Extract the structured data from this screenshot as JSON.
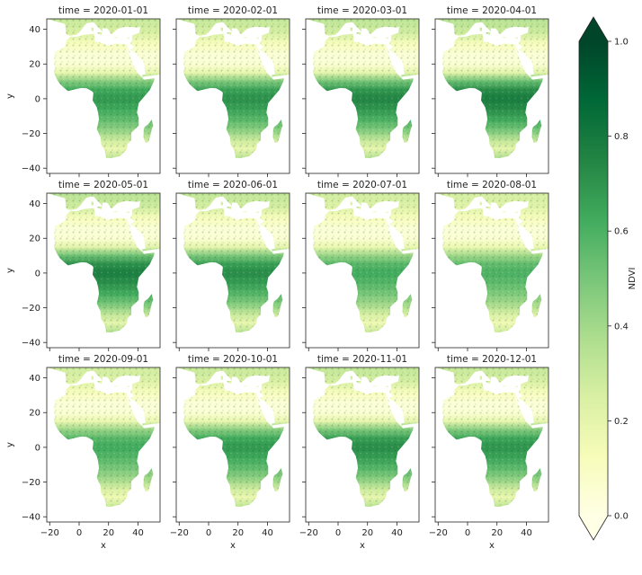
{
  "chart_data": {
    "type": "heatmap",
    "variable": "NDVI",
    "xlabel": "x",
    "ylabel": "y",
    "xlim": [
      -22,
      55
    ],
    "ylim": [
      -43,
      46
    ],
    "x_ticks": [
      -20,
      0,
      20,
      40
    ],
    "x_tick_labels": [
      "−20",
      "0",
      "20",
      "40"
    ],
    "y_ticks": [
      40,
      20,
      0,
      -20,
      -40
    ],
    "y_tick_labels": [
      "40",
      "20",
      "0",
      "−20",
      "−40"
    ],
    "colorbar": {
      "label": "NDVI",
      "range": [
        0.0,
        1.0
      ],
      "ticks": [
        0.0,
        0.2,
        0.4,
        0.6,
        0.8,
        1.0
      ],
      "tick_labels": [
        "0.0",
        "0.2",
        "0.4",
        "0.6",
        "0.8",
        "1.0"
      ],
      "extend": "both",
      "colormap": "YlGn",
      "colors": [
        "#ffffe5",
        "#f7fcb9",
        "#d9f0a3",
        "#addd8e",
        "#78c679",
        "#41ab5d",
        "#238443",
        "#006837",
        "#004529"
      ]
    },
    "panels": [
      {
        "title": "time = 2020-01-01",
        "green_level": 0.55
      },
      {
        "title": "time = 2020-02-01",
        "green_level": 0.57
      },
      {
        "title": "time = 2020-03-01",
        "green_level": 0.6
      },
      {
        "title": "time = 2020-04-01",
        "green_level": 0.63
      },
      {
        "title": "time = 2020-05-01",
        "green_level": 0.62
      },
      {
        "title": "time = 2020-06-01",
        "green_level": 0.58
      },
      {
        "title": "time = 2020-07-01",
        "green_level": 0.5
      },
      {
        "title": "time = 2020-08-01",
        "green_level": 0.48
      },
      {
        "title": "time = 2020-09-01",
        "green_level": 0.5
      },
      {
        "title": "time = 2020-10-01",
        "green_level": 0.55
      },
      {
        "title": "time = 2020-11-01",
        "green_level": 0.58
      },
      {
        "title": "time = 2020-12-01",
        "green_level": 0.56
      }
    ]
  }
}
